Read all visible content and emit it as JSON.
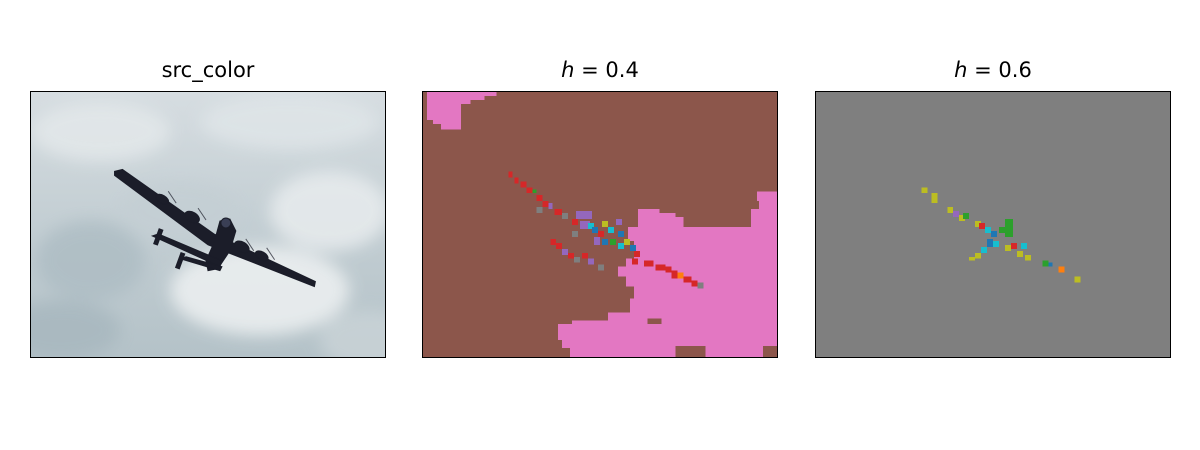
{
  "panels": [
    {
      "title": "src_color",
      "content": "photo of a four-engine propeller bomber flying against a cloudy sky"
    },
    {
      "title_var": "h",
      "title_rest": " = 0.4",
      "content": "segmentation map"
    },
    {
      "title_var": "h",
      "title_rest": " = 0.6",
      "content": "segmentation map"
    }
  ],
  "colors": {
    "sky_light": "#d2dade",
    "sky_mid": "#b9c6cc",
    "aircraft": "#1b1d29",
    "seg_brown": "#8c564b",
    "seg_pink": "#e377c2",
    "seg_gray": "#7f7f7f",
    "seg_red": "#d62728",
    "seg_blue": "#1f77b4",
    "seg_cyan": "#17becf",
    "seg_green": "#2ca02c",
    "seg_olive": "#bcbd22",
    "seg_purple": "#9467bd",
    "seg_orange": "#ff7f0e"
  }
}
